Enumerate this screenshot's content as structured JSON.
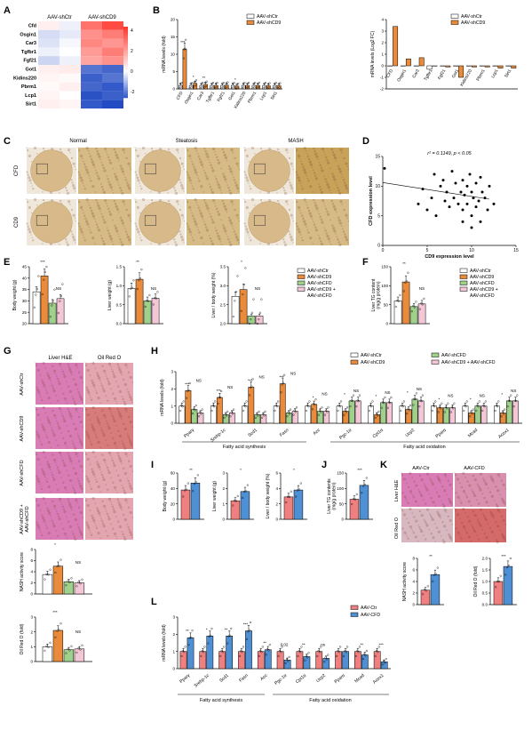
{
  "colors": {
    "ctr": "#ffffff",
    "cd9": "#e98b3a",
    "cfd": "#9fd08c",
    "both": "#f4c7d6",
    "red": "#f08080",
    "blue": "#4f8fd3",
    "axis": "#000000",
    "he": "#d97cb6",
    "oil": "#cf6a6a"
  },
  "panels": {
    "A": {
      "label": "A",
      "cols": [
        "AAV-shCtr",
        "AAV-shCD9"
      ],
      "rows": [
        "Cfd",
        "Osgin1",
        "Car3",
        "Tgfbr1",
        "Fgf21",
        "Got1",
        "Kidins220",
        "Pbrm1",
        "Lcp1",
        "Sirt1"
      ],
      "cells": [
        [
          0.3,
          -0.2,
          2.8,
          3.6
        ],
        [
          -0.5,
          -0.3,
          2.2,
          2.6
        ],
        [
          -0.4,
          -0.1,
          2.4,
          2.1
        ],
        [
          -0.2,
          0.0,
          2.0,
          2.6
        ],
        [
          -0.6,
          -0.2,
          1.8,
          2.2
        ],
        [
          0.3,
          0.4,
          -2.0,
          -2.2
        ],
        [
          0.2,
          0.1,
          -2.3,
          -2.0
        ],
        [
          0.1,
          0.3,
          -2.2,
          -2.4
        ],
        [
          0.2,
          0.0,
          -2.5,
          -2.3
        ],
        [
          0.3,
          0.2,
          -2.4,
          -2.6
        ]
      ],
      "scale_ticks": [
        "4",
        "2",
        "0",
        "-2"
      ]
    },
    "B": {
      "label": "B",
      "legend": [
        "AAV-shCtr",
        "AAV-shCD9"
      ],
      "genes": [
        "CFD",
        "Osgin1",
        "Car3",
        "Tgfbr1",
        "Fgf21",
        "Got1",
        "Kidins220",
        "Pbrm1",
        "Lcp1",
        "Sirt1"
      ],
      "left": {
        "ylabel": "mRNA levels (fold)",
        "ylim": [
          0,
          20
        ],
        "yticks": [
          "0",
          "5",
          "10",
          "15",
          "20"
        ],
        "ctr": [
          1,
          1,
          1,
          1,
          1,
          1,
          1,
          1,
          1,
          1
        ],
        "cd9": [
          11.5,
          1.6,
          1.3,
          1.0,
          1.1,
          0.8,
          1.0,
          1.0,
          0.9,
          0.9
        ],
        "sig": [
          "***",
          "*",
          "**",
          "",
          "",
          "*",
          "",
          "",
          "",
          ""
        ]
      },
      "right": {
        "ylabel": "mRNA levels (Log2 FC)",
        "ylim": [
          -2,
          4
        ],
        "yticks": [
          "-2",
          "-1",
          "0",
          "1",
          "2",
          "3",
          "4"
        ],
        "ctr": [
          0,
          0,
          0,
          -0.3,
          0,
          0,
          0,
          0,
          0,
          0
        ],
        "cd9": [
          3.4,
          0.6,
          0.7,
          0,
          -0.1,
          -1.0,
          -0.1,
          -0.1,
          -0.2,
          -0.2
        ]
      }
    },
    "C": {
      "label": "C",
      "cols": [
        "Normal",
        "Steatosis",
        "MASH"
      ],
      "rows": [
        "CFD",
        "CD9"
      ]
    },
    "D": {
      "label": "D",
      "stat": "r² = 0.1149, p < 0.05",
      "xlabel": "CD9 expression level",
      "ylabel": "CFD expression level",
      "xticks": [
        "0",
        "5",
        "10",
        "15"
      ],
      "yticks": [
        "0",
        "5",
        "10",
        "15"
      ],
      "points": [
        [
          0.2,
          13
        ],
        [
          4,
          7
        ],
        [
          4.5,
          9.5
        ],
        [
          5,
          6
        ],
        [
          5.5,
          8
        ],
        [
          5.8,
          12
        ],
        [
          6,
          5
        ],
        [
          6.5,
          10
        ],
        [
          6.8,
          11
        ],
        [
          7,
          7.5
        ],
        [
          7.2,
          9
        ],
        [
          7.5,
          6.5
        ],
        [
          7.8,
          12.5
        ],
        [
          8,
          8
        ],
        [
          8.2,
          10.5
        ],
        [
          8.5,
          7
        ],
        [
          8.8,
          9
        ],
        [
          9,
          6
        ],
        [
          9,
          11
        ],
        [
          9.2,
          8.5
        ],
        [
          9.5,
          10
        ],
        [
          9.5,
          7
        ],
        [
          9.8,
          12
        ],
        [
          10,
          5
        ],
        [
          10,
          9
        ],
        [
          10.2,
          8
        ],
        [
          10.5,
          10.5
        ],
        [
          10.5,
          6.5
        ],
        [
          10.8,
          7.5
        ],
        [
          11,
          11.5
        ],
        [
          11,
          4
        ],
        [
          11.2,
          9
        ],
        [
          11.5,
          8
        ],
        [
          11.8,
          6
        ],
        [
          12,
          10
        ],
        [
          12.5,
          7
        ],
        [
          10,
          3
        ],
        [
          9,
          4
        ]
      ],
      "fit": [
        [
          0,
          10.6
        ],
        [
          12,
          7.8
        ]
      ]
    },
    "E": {
      "label": "E",
      "legend": [
        "AAV-shCtr",
        "AAV-shCD9",
        "AAV-shCFD",
        "AAV-shCD9 +",
        "AAV-shCFD"
      ],
      "bw": {
        "ylabel": "Body weight (g)",
        "yticks": [
          "20",
          "25",
          "30",
          "35",
          "40",
          "45"
        ],
        "vals": [
          34,
          41,
          29,
          31
        ],
        "sig": [
          "***",
          "NS"
        ]
      },
      "lw": {
        "ylabel": "Liver weight (g)",
        "yticks": [
          "0.0",
          "0.5",
          "1.0",
          "1.5"
        ],
        "vals": [
          0.93,
          1.17,
          0.6,
          0.67
        ],
        "sig": [
          "**",
          "NS"
        ]
      },
      "ratio": {
        "ylabel": "Liver / body weight (%)",
        "yticks": [
          "2.0",
          "2.5",
          "3.0",
          "3.5"
        ],
        "vals": [
          2.72,
          2.9,
          2.2,
          2.2
        ],
        "sig": [
          "*",
          "NS"
        ]
      }
    },
    "F": {
      "label": "F",
      "ylabel": "Liver TG content",
      "ylabel2": "(mg/g protein)",
      "yticks": [
        "0",
        "50",
        "100",
        "150"
      ],
      "vals": [
        60,
        110,
        45,
        52
      ],
      "sig": [
        "**",
        "NS"
      ],
      "legend": [
        "AAV-shCtr",
        "AAV-shCD9",
        "AAV-shCFD",
        "AAV-shCD9 +",
        "AAV-shCFD"
      ]
    },
    "G": {
      "label": "G",
      "cols": [
        "Liver H&E",
        "Oil Red O"
      ],
      "rows": [
        "AAV-shCtr",
        "AAV-shCD9",
        "AAV-shCFD",
        "AAV-shCD9 +",
        "AAV-shCFD"
      ],
      "nas": {
        "ylabel": "NASH activity score",
        "yticks": [
          "0",
          "2",
          "4",
          "6",
          "8"
        ],
        "vals": [
          3.5,
          5,
          2.2,
          2
        ],
        "sig": [
          "*",
          "NS"
        ]
      },
      "oil": {
        "ylabel": "Oil Red O (fold)",
        "yticks": [
          "0",
          "1",
          "2",
          "3"
        ],
        "vals": [
          1,
          2.1,
          0.8,
          0.85
        ],
        "sig": [
          "***",
          "NS"
        ]
      }
    },
    "H": {
      "label": "H",
      "legend": [
        "AAV-shCtr",
        "AAV-shCD9",
        "AAV-shCFD",
        "AAV-shCD9 + AAV-shCFD"
      ],
      "ylabel": "mRNA levels (fold)",
      "yticks": [
        "0",
        "1",
        "2",
        "3"
      ],
      "genes": [
        "Pparγ",
        "Srebp-1c",
        "Scd1",
        "Fasn",
        "Acc",
        "Pgc-1α",
        "Cpt1α",
        "Ucp2",
        "Pparα",
        "Mcad",
        "Acox1"
      ],
      "vals": [
        [
          1,
          1.9,
          0.8,
          0.6
        ],
        [
          1,
          1.5,
          0.5,
          0.6
        ],
        [
          1,
          2.1,
          0.5,
          0.5
        ],
        [
          1,
          2.3,
          0.6,
          0.7
        ],
        [
          1,
          1.1,
          0.7,
          0.7
        ],
        [
          1,
          0.7,
          1.3,
          1.3
        ],
        [
          1,
          0.5,
          1.2,
          1.2
        ],
        [
          1,
          0.8,
          1.4,
          1.3
        ],
        [
          1,
          0.9,
          0.9,
          0.9
        ],
        [
          1,
          0.6,
          1.0,
          1.0
        ],
        [
          1,
          0.6,
          1.3,
          1.3
        ]
      ],
      "group1": "Fatty acid synthesis",
      "group2": "Fatty acid oxidation"
    },
    "I": {
      "label": "I",
      "bw": {
        "ylabel": "Body weight (g)",
        "yticks": [
          "0",
          "20",
          "40",
          "60"
        ],
        "vals": [
          38,
          47
        ],
        "sig": "**"
      },
      "lw": {
        "ylabel": "Liver weight (g)",
        "yticks": [
          "0",
          "1",
          "2",
          "3"
        ],
        "vals": [
          1.2,
          1.8
        ],
        "sig": "*"
      },
      "ratio": {
        "ylabel": "Liver / body weight (%)",
        "yticks": [
          "0",
          "2",
          "4",
          "6"
        ],
        "vals": [
          2.9,
          3.8
        ],
        "sig": "*"
      }
    },
    "J": {
      "label": "J",
      "ylabel": "Liver TG contents",
      "ylabel2": "(mg/g protein)",
      "yticks": [
        "0",
        "50",
        "100",
        "150"
      ],
      "vals": [
        65,
        110
      ],
      "sig": "***"
    },
    "K": {
      "label": "K",
      "cols": [
        "AAV-Ctr",
        "AAV-CFD"
      ],
      "rows": [
        "Liver H&E",
        "Oil Red O"
      ],
      "nas": {
        "ylabel": "NASH activity score",
        "yticks": [
          "0",
          "2",
          "4",
          "6",
          "8"
        ],
        "vals": [
          2.5,
          5.2
        ],
        "sig": "**"
      },
      "oil": {
        "ylabel": "Oil Red O (fold)",
        "yticks": [
          "0.0",
          "0.5",
          "1.0",
          "1.5",
          "2.0"
        ],
        "vals": [
          1,
          1.65
        ],
        "sig": "***"
      }
    },
    "L": {
      "label": "L",
      "legend": [
        "AAV-Ctr",
        "AAV-CFD"
      ],
      "ylabel": "mRNA levels (fold)",
      "yticks": [
        "0",
        "1",
        "2",
        "3"
      ],
      "genes": [
        "Pparγ",
        "Srebp-1c",
        "Scd1",
        "Fasn",
        "Acc",
        "Pgc-1α",
        "Cpt1α",
        "Ucp2",
        "Pparα",
        "Mcad",
        "Acox1"
      ],
      "vals": [
        [
          1,
          1.8
        ],
        [
          1,
          1.9
        ],
        [
          1,
          1.9
        ],
        [
          1,
          2.2
        ],
        [
          1,
          1.1
        ],
        [
          1,
          0.5
        ],
        [
          1,
          0.7
        ],
        [
          1,
          0.6
        ],
        [
          1,
          1.0
        ],
        [
          1,
          0.8
        ],
        [
          1,
          0.4
        ]
      ],
      "sig": [
        "**",
        "*",
        "**",
        "***",
        "**",
        "0.02",
        "**",
        "ns",
        "",
        "**",
        "***"
      ],
      "group1": "Fatty acid synthesis",
      "group2": "Fatty acid oxidation"
    }
  }
}
